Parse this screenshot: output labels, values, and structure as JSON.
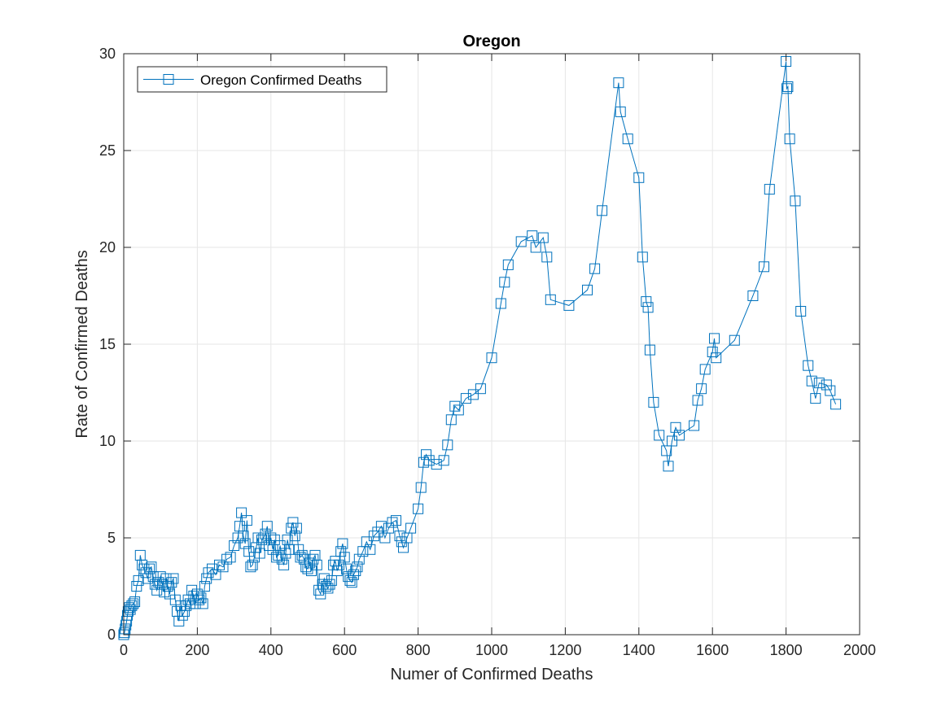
{
  "chart_data": {
    "type": "line",
    "title": "Oregon",
    "xlabel": "Numer of Confirmed Deaths",
    "ylabel": "Rate of Confirmed Deaths",
    "xlim": [
      0,
      2000
    ],
    "ylim": [
      0,
      30
    ],
    "xticks": [
      0,
      200,
      400,
      600,
      800,
      1000,
      1200,
      1400,
      1600,
      1800,
      2000
    ],
    "yticks": [
      0,
      5,
      10,
      15,
      20,
      25,
      30
    ],
    "grid": true,
    "legend_position": "top-left",
    "series": [
      {
        "name": "Oregon Confirmed Deaths",
        "color": "#0072BD",
        "marker": "square",
        "x": [
          0,
          2,
          4,
          6,
          8,
          10,
          12,
          15,
          18,
          22,
          26,
          30,
          35,
          40,
          45,
          50,
          55,
          60,
          65,
          70,
          75,
          80,
          85,
          90,
          95,
          100,
          105,
          110,
          115,
          120,
          125,
          130,
          135,
          140,
          145,
          150,
          155,
          160,
          165,
          170,
          175,
          180,
          185,
          190,
          195,
          200,
          205,
          210,
          215,
          220,
          225,
          230,
          240,
          250,
          260,
          270,
          280,
          290,
          300,
          310,
          315,
          320,
          325,
          330,
          335,
          340,
          345,
          350,
          355,
          360,
          365,
          370,
          375,
          380,
          385,
          390,
          395,
          400,
          405,
          410,
          415,
          420,
          425,
          430,
          435,
          440,
          445,
          450,
          455,
          460,
          465,
          470,
          475,
          480,
          485,
          490,
          495,
          500,
          505,
          510,
          515,
          520,
          525,
          530,
          535,
          540,
          545,
          550,
          555,
          560,
          565,
          570,
          575,
          580,
          585,
          590,
          595,
          600,
          605,
          610,
          615,
          620,
          625,
          630,
          635,
          640,
          650,
          660,
          670,
          680,
          690,
          700,
          710,
          720,
          730,
          740,
          750,
          755,
          760,
          770,
          780,
          800,
          808,
          815,
          822,
          830,
          850,
          870,
          880,
          890,
          900,
          910,
          930,
          950,
          970,
          1000,
          1025,
          1035,
          1045,
          1080,
          1110,
          1120,
          1140,
          1150,
          1160,
          1210,
          1260,
          1280,
          1300,
          1345,
          1350,
          1370,
          1400,
          1410,
          1420,
          1425,
          1430,
          1440,
          1455,
          1475,
          1480,
          1490,
          1500,
          1510,
          1550,
          1560,
          1570,
          1580,
          1600,
          1605,
          1610,
          1660,
          1710,
          1740,
          1755,
          1800,
          1802,
          1805,
          1810,
          1825,
          1840,
          1860,
          1870,
          1880,
          1890,
          1910,
          1920,
          1935
        ],
        "y": [
          0,
          0.1,
          0.3,
          0.5,
          0.7,
          1.0,
          1.2,
          1.4,
          1.3,
          1.5,
          1.6,
          1.7,
          2.5,
          2.8,
          4.1,
          3.6,
          3.4,
          3.2,
          2.9,
          3.4,
          3.5,
          3.0,
          2.6,
          2.3,
          2.7,
          3.0,
          2.6,
          2.2,
          2.9,
          2.5,
          2.1,
          2.7,
          2.9,
          1.8,
          1.2,
          0.7,
          1.5,
          1.0,
          1.2,
          1.5,
          1.8,
          1.6,
          2.3,
          2.0,
          1.6,
          2.1,
          1.8,
          1.9,
          1.6,
          2.5,
          2.9,
          3.2,
          3.4,
          3.1,
          3.6,
          3.5,
          3.9,
          4.0,
          4.6,
          5.0,
          5.6,
          6.3,
          5.1,
          4.7,
          5.9,
          4.3,
          3.5,
          3.6,
          4.0,
          4.5,
          5.0,
          4.2,
          4.9,
          5.0,
          5.2,
          5.6,
          4.6,
          5.0,
          4.4,
          4.9,
          4.0,
          4.1,
          4.6,
          3.9,
          3.6,
          4.2,
          4.9,
          4.4,
          5.5,
          5.8,
          5.1,
          5.5,
          4.4,
          4.0,
          4.1,
          3.9,
          3.5,
          3.4,
          3.7,
          3.3,
          3.9,
          4.1,
          3.6,
          2.3,
          2.1,
          2.6,
          2.9,
          2.5,
          2.4,
          2.6,
          2.8,
          3.6,
          3.8,
          3.3,
          3.6,
          4.3,
          4.7,
          4.0,
          3.4,
          3.0,
          2.8,
          2.7,
          3.1,
          3.3,
          3.5,
          3.9,
          4.3,
          4.8,
          4.4,
          5.1,
          5.3,
          5.6,
          5.0,
          5.5,
          5.8,
          5.9,
          5.1,
          4.8,
          4.5,
          5.0,
          5.5,
          6.5,
          7.6,
          8.9,
          9.3,
          9.0,
          8.8,
          9.0,
          9.8,
          11.1,
          11.8,
          11.6,
          12.2,
          12.4,
          12.7,
          14.3,
          17.1,
          18.2,
          19.1,
          20.3,
          20.6,
          20.0,
          20.5,
          19.5,
          17.3,
          17.0,
          17.8,
          18.9,
          21.9,
          28.5,
          27.0,
          25.6,
          23.6,
          19.5,
          17.2,
          16.9,
          14.7,
          12.0,
          10.3,
          9.5,
          8.7,
          10.0,
          10.7,
          10.3,
          10.8,
          12.1,
          12.7,
          13.7,
          14.6,
          15.3,
          14.3,
          15.2,
          17.5,
          19.0,
          23.0,
          29.6,
          28.2,
          28.3,
          25.6,
          22.4,
          16.7,
          13.9,
          13.1,
          12.2,
          13.0,
          12.9,
          12.6,
          11.9
        ]
      }
    ]
  }
}
